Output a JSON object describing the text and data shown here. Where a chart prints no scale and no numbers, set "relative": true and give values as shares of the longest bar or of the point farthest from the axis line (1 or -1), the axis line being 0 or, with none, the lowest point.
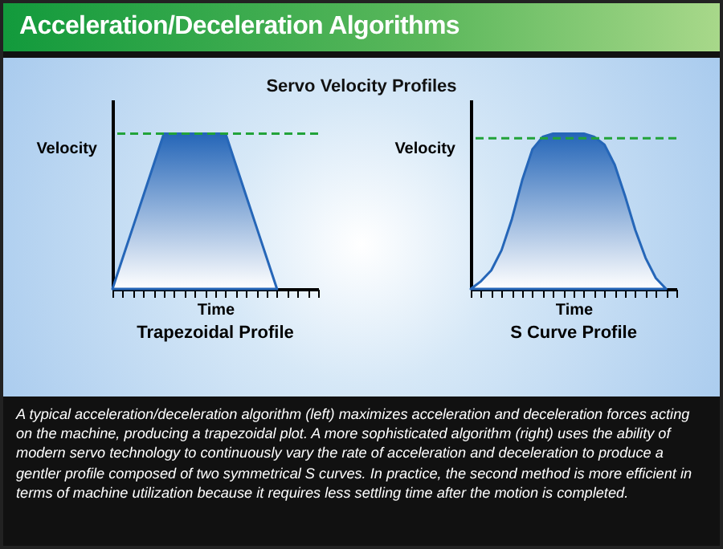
{
  "chart_data": [
    {
      "type": "other",
      "title": "Acceleration/Deceleration Algorithms",
      "subtitle": "Servo Velocity Profiles",
      "annotations": [
        "A typical acceleration/deceleration algorithm (left) maximizes acceleration and deceleration forces acting on the machine, producing a trapezoidal plot. A more sophisticated algorithm (right) uses the ability of modern servo technology to continuously vary the rate of acceleration and deceleration to produce a gentler profile composed of two symmetrical S curves. In practice, the second method is more efficient in terms of machine utilization because it requires less settling time after the motion is completed."
      ]
    },
    {
      "type": "area",
      "title": "Trapezoidal Profile",
      "xlabel": "Time",
      "ylabel": "Velocity",
      "relative": true,
      "categories": [
        null,
        null,
        null,
        null,
        null,
        null,
        null,
        null,
        null,
        null,
        null,
        null,
        null,
        null,
        null,
        null,
        null,
        null,
        null,
        null,
        null
      ],
      "series": [
        {
          "color": "#2566b8",
          "values": [
            0,
            0.2,
            0.4,
            0.6,
            0.8,
            1,
            1,
            1,
            1,
            1,
            1,
            1,
            0.8,
            0.6,
            0.4,
            0.2,
            0,
            null,
            null,
            null,
            null
          ]
        }
      ],
      "ref_lines": [
        {
          "axis": "y",
          "value": 1,
          "color": "#22a33a",
          "line_style": "dashed"
        }
      ]
    },
    {
      "type": "area",
      "title": "S Curve Profile",
      "xlabel": "Time",
      "ylabel": "Velocity",
      "relative": true,
      "categories": [
        null,
        null,
        null,
        null,
        null,
        null,
        null,
        null,
        null,
        null,
        null,
        null,
        null,
        null,
        null,
        null,
        null,
        null,
        null,
        null,
        null
      ],
      "series": [
        {
          "color": "#2566b8",
          "values": [
            0,
            0.05,
            0.12,
            0.25,
            0.45,
            0.7,
            0.9,
            0.98,
            1,
            1,
            1,
            1,
            0.98,
            0.93,
            0.8,
            0.6,
            0.38,
            0.2,
            0.07,
            0,
            null
          ]
        }
      ],
      "ref_lines": [
        {
          "axis": "y",
          "value": 0.97,
          "color": "#22a33a",
          "line_style": "dashed"
        }
      ]
    }
  ]
}
